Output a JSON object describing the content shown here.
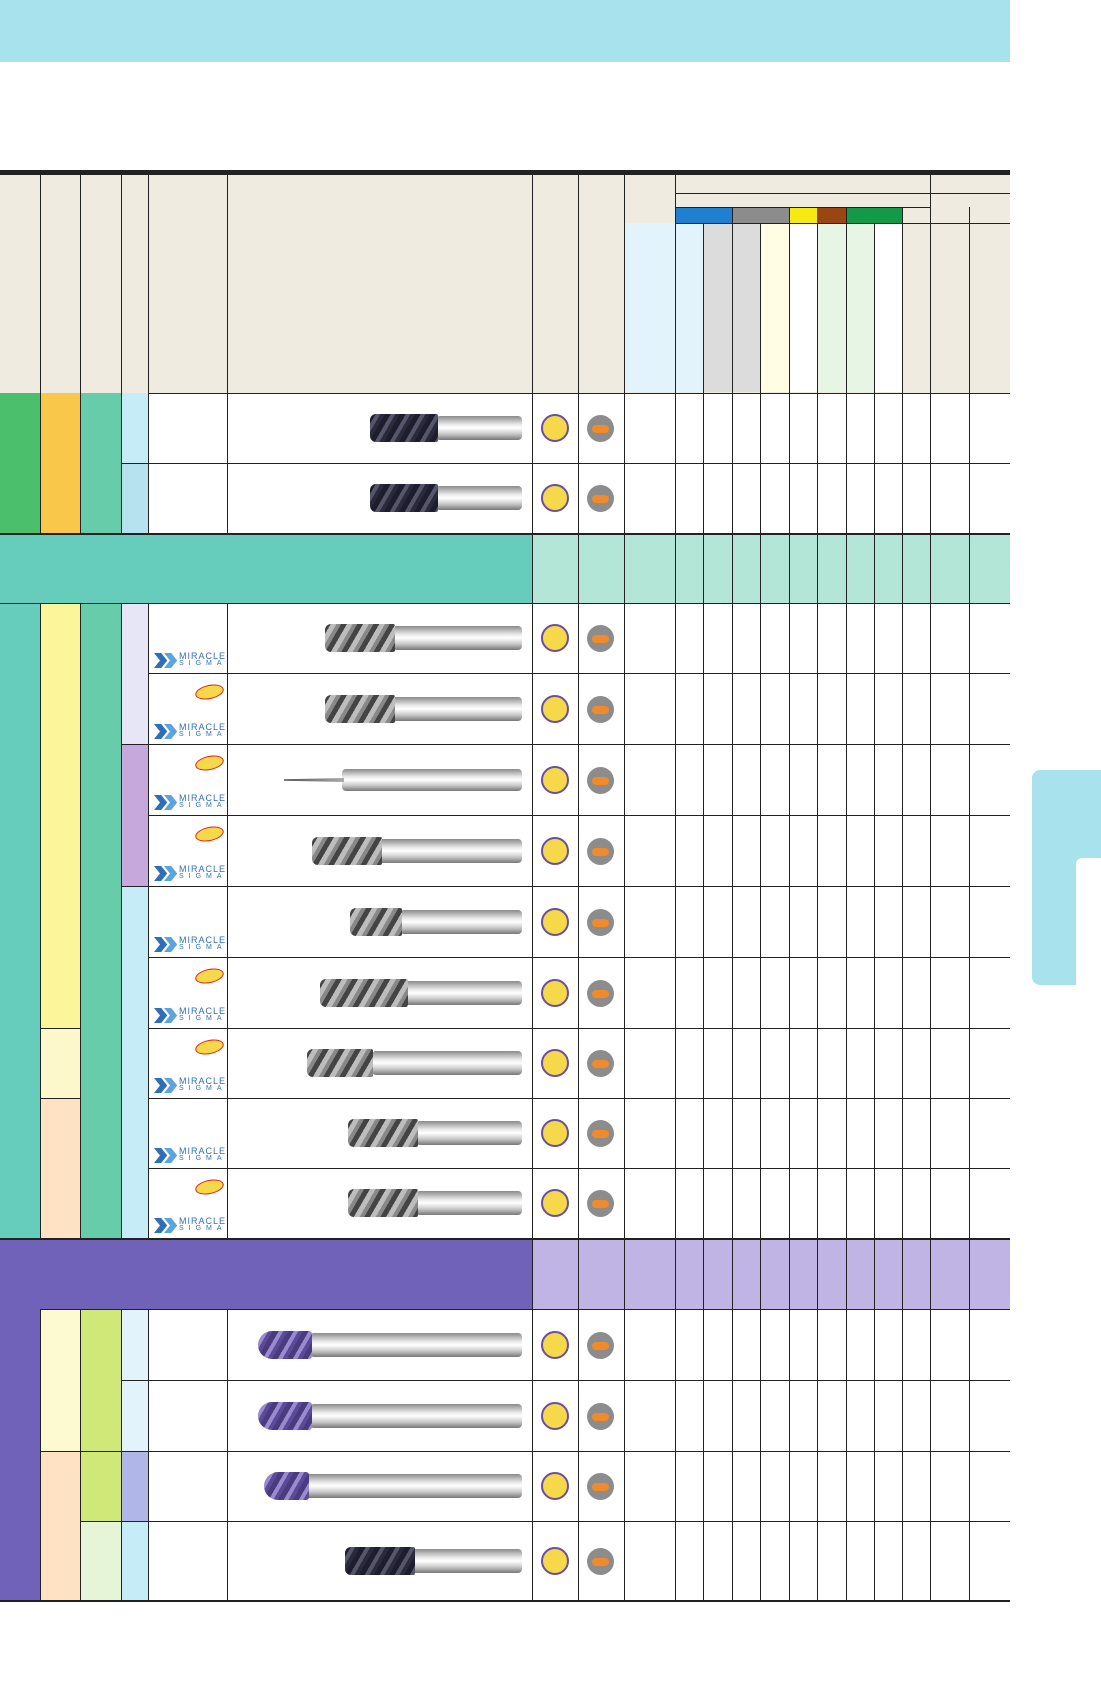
{
  "page": {
    "header_band_color": "#a8e2ec",
    "side_tab_color": "#a8e2ec"
  },
  "table": {
    "header_bg": "#f0ebe0",
    "material_colors": [
      "#1f7fd0",
      "#8c8c8c",
      "#f5ea14",
      "#9a4612",
      "#129a48"
    ],
    "material_column_tints": [
      "#e3f3fb",
      "#e3f3fb",
      "#dcdcdc",
      "#dcdcdc",
      "#fffde4",
      "#ffffff",
      "#e6f5e4",
      "#e6f5e4",
      "#ffffff"
    ],
    "section_colors": {
      "group1": "#4cbf6c",
      "group2": "#66ccbb",
      "group2_band_light": "#b4e6d8",
      "group3": "#7062b8",
      "group3_band_light": "#c0b4e4"
    },
    "rows": [
      {
        "tool": "dark-roughing-end-mill",
        "logo": false,
        "new": false
      },
      {
        "tool": "dark-roughing-end-mill",
        "logo": false,
        "new": false
      },
      {
        "tool": "square-end-mill-3-flute",
        "logo": true,
        "new": false
      },
      {
        "tool": "square-end-mill-3-flute",
        "logo": true,
        "new": true
      },
      {
        "tool": "micro-end-mill",
        "logo": true,
        "new": true
      },
      {
        "tool": "variable-flute-end-mill",
        "logo": true,
        "new": true
      },
      {
        "tool": "short-flute-end-mill",
        "logo": true,
        "new": false
      },
      {
        "tool": "long-flute-end-mill",
        "logo": true,
        "new": true
      },
      {
        "tool": "radius-end-mill",
        "logo": true,
        "new": true
      },
      {
        "tool": "square-end-mill-4-flute",
        "logo": true,
        "new": false
      },
      {
        "tool": "square-end-mill-4-flute",
        "logo": true,
        "new": true
      },
      {
        "tool": "ball-end-mill-long",
        "logo": false,
        "new": false
      },
      {
        "tool": "ball-end-mill-long",
        "logo": false,
        "new": false
      },
      {
        "tool": "ball-end-mill-short",
        "logo": false,
        "new": false
      },
      {
        "tool": "dark-square-end-mill",
        "logo": false,
        "new": false
      }
    ]
  }
}
